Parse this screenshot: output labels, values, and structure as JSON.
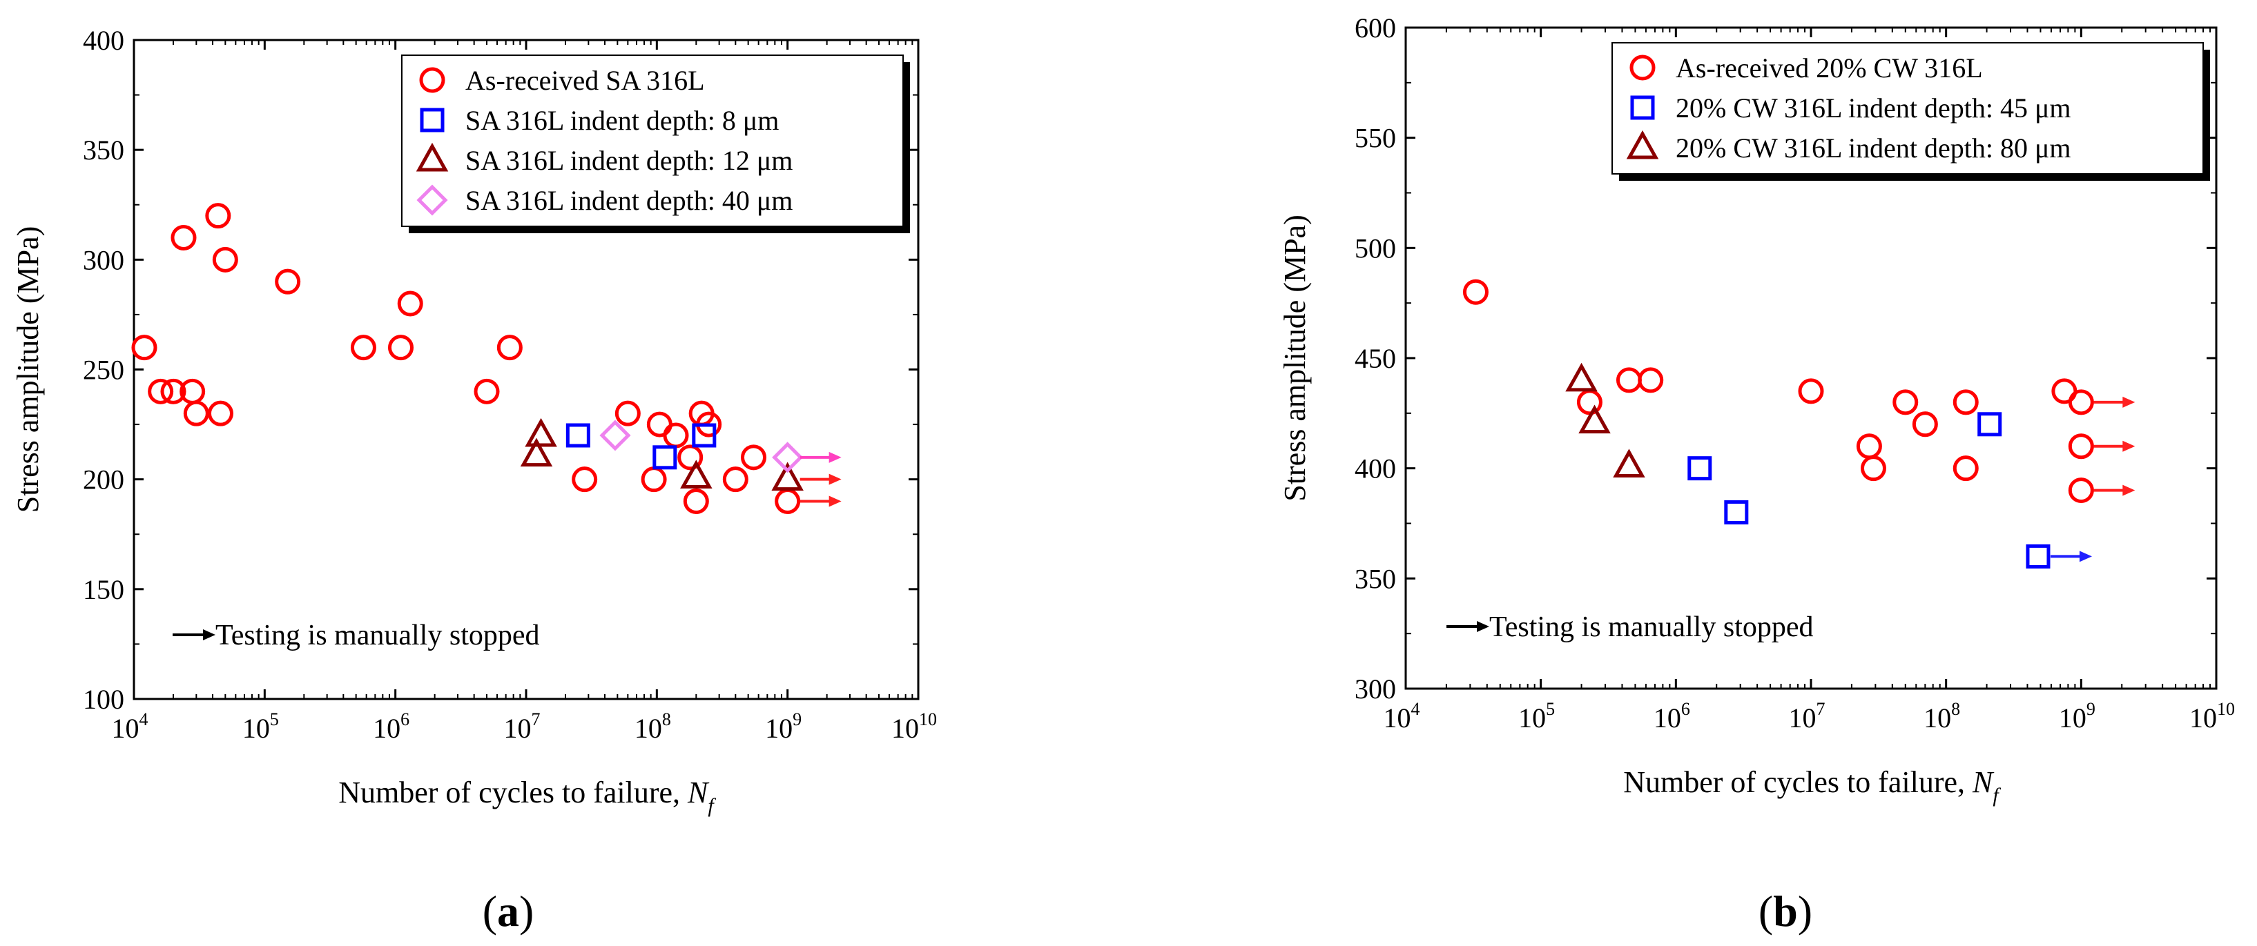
{
  "colors": {
    "red": "#ff0000",
    "blue": "#0000ff",
    "darkred": "#8b0000",
    "pink": "#ee82ee",
    "arrow_red": "#ff2020",
    "arrow_pink": "#ff40c0",
    "arrow_blue": "#2020ff"
  },
  "chart_data": [
    {
      "type": "scatter",
      "panel_label": "(a)",
      "xlabel": "Number of cycles to failure, ",
      "xlabel_italic": "N",
      "xlabel_sub": "f",
      "ylabel": "Stress amplitude (MPa)",
      "xscale": "log",
      "xlim_exp": [
        4,
        10
      ],
      "ylim": [
        100,
        400
      ],
      "yticks": [
        100,
        150,
        200,
        250,
        300,
        350,
        400
      ],
      "xtick_base": "10",
      "xtick_exponents": [
        "4",
        "5",
        "6",
        "7",
        "8",
        "9",
        "10"
      ],
      "legend_position": "top-right",
      "note": "Testing is manually stopped",
      "series": [
        {
          "name": "As-received SA 316L",
          "marker": "circle",
          "color": "red",
          "points": [
            [
              12000,
              260
            ],
            [
              16000,
              240
            ],
            [
              20000,
              240
            ],
            [
              24000,
              310
            ],
            [
              28000,
              240
            ],
            [
              30000,
              230
            ],
            [
              44000,
              320
            ],
            [
              46000,
              230
            ],
            [
              50000,
              300
            ],
            [
              150000,
              290
            ],
            [
              570000,
              260
            ],
            [
              1100000,
              260
            ],
            [
              1300000,
              280
            ],
            [
              5000000,
              240
            ],
            [
              7500000,
              260
            ],
            [
              28000000,
              200
            ],
            [
              60000000,
              230
            ],
            [
              95000000,
              200
            ],
            [
              105000000,
              225
            ],
            [
              140000000,
              220
            ],
            [
              180000000,
              210
            ],
            [
              200000000,
              190
            ],
            [
              220000000,
              230
            ],
            [
              250000000,
              225
            ],
            [
              400000000,
              200
            ],
            [
              550000000,
              210
            ],
            [
              1000000000,
              190
            ]
          ]
        },
        {
          "name": "SA 316L indent depth: 8 μm",
          "marker": "square",
          "color": "blue",
          "points": [
            [
              25000000,
              220
            ],
            [
              115000000,
              210
            ],
            [
              230000000,
              220
            ]
          ]
        },
        {
          "name": "SA 316L indent depth: 12 μm",
          "marker": "triangle",
          "color": "darkred",
          "points": [
            [
              12000000,
              211
            ],
            [
              13000000,
              220
            ],
            [
              200000000,
              201
            ],
            [
              1000000000,
              200
            ]
          ]
        },
        {
          "name": "SA 316L indent depth: 40 μm",
          "marker": "diamond",
          "color": "pink",
          "points": [
            [
              48000000,
              220
            ],
            [
              1000000000,
              210
            ]
          ]
        }
      ],
      "runouts": [
        {
          "x": 1000000000,
          "y": 210,
          "color": "arrow_pink"
        },
        {
          "x": 1000000000,
          "y": 200,
          "color": "arrow_red"
        },
        {
          "x": 1000000000,
          "y": 190,
          "color": "arrow_red"
        }
      ]
    },
    {
      "type": "scatter",
      "panel_label": "(b)",
      "xlabel": "Number of cycles to failure, ",
      "xlabel_italic": "N",
      "xlabel_sub": "f",
      "ylabel": "Stress amplitude (MPa)",
      "xscale": "log",
      "xlim_exp": [
        4,
        10
      ],
      "ylim": [
        300,
        600
      ],
      "yticks": [
        300,
        350,
        400,
        450,
        500,
        550,
        600
      ],
      "xtick_base": "10",
      "xtick_exponents": [
        "4",
        "5",
        "6",
        "7",
        "8",
        "9",
        "10"
      ],
      "legend_position": "top-right",
      "note": "Testing is manually stopped",
      "series": [
        {
          "name": "As-received 20% CW 316L",
          "marker": "circle",
          "color": "red",
          "points": [
            [
              33000,
              480
            ],
            [
              230000,
              430
            ],
            [
              450000,
              440
            ],
            [
              650000,
              440
            ],
            [
              10000000,
              435
            ],
            [
              27000000,
              410
            ],
            [
              29000000,
              400
            ],
            [
              50000000,
              430
            ],
            [
              70000000,
              420
            ],
            [
              140000000,
              430
            ],
            [
              140000000,
              400
            ],
            [
              750000000,
              435
            ],
            [
              1000000000,
              430
            ],
            [
              1000000000,
              410
            ],
            [
              1000000000,
              390
            ]
          ]
        },
        {
          "name": "20% CW 316L indent depth: 45 μm",
          "marker": "square",
          "color": "blue",
          "points": [
            [
              1500000,
              400
            ],
            [
              2800000,
              380
            ],
            [
              210000000,
              420
            ],
            [
              480000000,
              360
            ]
          ]
        },
        {
          "name": "20% CW 316L indent depth: 80 μm",
          "marker": "triangle",
          "color": "darkred",
          "points": [
            [
              200000,
              440
            ],
            [
              250000,
              421
            ],
            [
              450000,
              401
            ]
          ]
        }
      ],
      "runouts": [
        {
          "x": 1000000000,
          "y": 430,
          "color": "arrow_red"
        },
        {
          "x": 1000000000,
          "y": 410,
          "color": "arrow_red"
        },
        {
          "x": 1000000000,
          "y": 390,
          "color": "arrow_red"
        },
        {
          "x": 480000000,
          "y": 360,
          "color": "arrow_blue"
        }
      ]
    }
  ]
}
